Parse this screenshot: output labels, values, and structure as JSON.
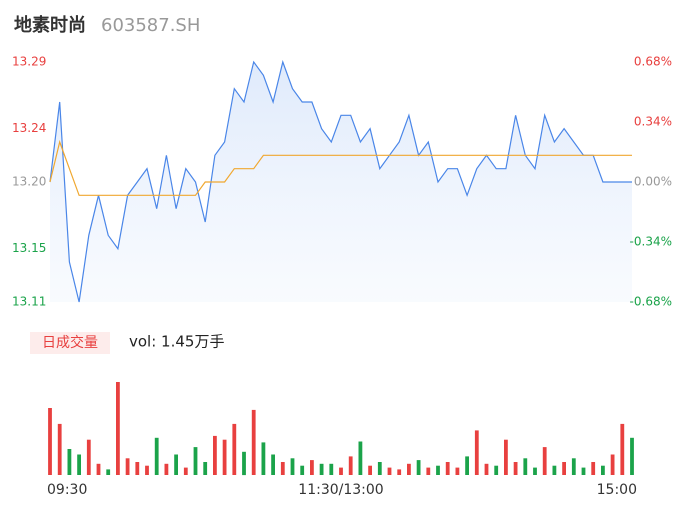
{
  "chart_data": {
    "type": "intraday",
    "title": "地素时尚",
    "subtitle": "603587.SH",
    "x": [
      0,
      4,
      8,
      12,
      16,
      20,
      24,
      28,
      32,
      36,
      40,
      44,
      48,
      52,
      56,
      60,
      64,
      68,
      72,
      76,
      80,
      84,
      88,
      92,
      96,
      100,
      104,
      108,
      112,
      116,
      120,
      124,
      128,
      132,
      136,
      140,
      144,
      148,
      152,
      156,
      160,
      164,
      168,
      172,
      176,
      180,
      184,
      188,
      192,
      196,
      200,
      204,
      208,
      212,
      216,
      220,
      224,
      228,
      232,
      236,
      240
    ],
    "xlim": [
      0,
      240
    ],
    "xticks": [
      {
        "value": 0,
        "label": "09:30"
      },
      {
        "value": 120,
        "label": "11:30/13:00"
      },
      {
        "value": 240,
        "label": "15:00"
      }
    ],
    "ylim": [
      13.11,
      13.29
    ],
    "yticks": [
      13.29,
      13.24,
      {
        "value": 13.2,
        "label": "13.20"
      },
      13.15,
      13.11
    ],
    "y2lim": [
      -0.68,
      0.68
    ],
    "y2ticks": [
      {
        "value": 0.68,
        "label": "0.68%"
      },
      {
        "value": 0.34,
        "label": "0.34%"
      },
      {
        "value": 0,
        "label": "0.00%"
      },
      {
        "value": -0.34,
        "label": "-0.34%"
      },
      {
        "value": -0.68,
        "label": "-0.68%"
      }
    ],
    "up_color": "#e8403f",
    "down_color": "#1ba34a",
    "flat_color": "#999999",
    "series": [
      {
        "color": "#4a86e8",
        "values": [
          13.2,
          13.26,
          13.14,
          13.11,
          13.16,
          13.19,
          13.16,
          13.15,
          13.19,
          13.2,
          13.21,
          13.18,
          13.22,
          13.18,
          13.21,
          13.2,
          13.17,
          13.22,
          13.23,
          13.27,
          13.26,
          13.29,
          13.28,
          13.26,
          13.29,
          13.27,
          13.26,
          13.26,
          13.24,
          13.23,
          13.25,
          13.25,
          13.23,
          13.24,
          13.21,
          13.22,
          13.23,
          13.25,
          13.22,
          13.23,
          13.2,
          13.21,
          13.21,
          13.19,
          13.21,
          13.22,
          13.21,
          13.21,
          13.25,
          13.22,
          13.21,
          13.25,
          13.23,
          13.24,
          13.23,
          13.22,
          13.22,
          13.2,
          13.2,
          13.2,
          13.2
        ]
      },
      {
        "color": "#f0a830",
        "values": [
          13.2,
          13.23,
          13.21,
          13.19,
          13.19,
          13.19,
          13.19,
          13.19,
          13.19,
          13.19,
          13.19,
          13.19,
          13.19,
          13.19,
          13.19,
          13.19,
          13.2,
          13.2,
          13.2,
          13.21,
          13.21,
          13.21,
          13.22,
          13.22,
          13.22,
          13.22,
          13.22,
          13.22,
          13.22,
          13.22,
          13.22,
          13.22,
          13.22,
          13.22,
          13.22,
          13.22,
          13.22,
          13.22,
          13.22,
          13.22,
          13.22,
          13.22,
          13.22,
          13.22,
          13.22,
          13.22,
          13.22,
          13.22,
          13.22,
          13.22,
          13.22,
          13.22,
          13.22,
          13.22,
          13.22,
          13.22,
          13.22,
          13.22,
          13.22,
          13.22,
          13.22
        ]
      }
    ],
    "volume_title": "日成交量",
    "volume_text": "vol: 1.45万手",
    "volume": {
      "ylim": [
        0,
        100
      ],
      "values": [
        72,
        55,
        28,
        22,
        38,
        12,
        6,
        100,
        18,
        14,
        10,
        40,
        12,
        22,
        8,
        30,
        14,
        42,
        38,
        55,
        25,
        70,
        35,
        22,
        14,
        18,
        10,
        16,
        12,
        12,
        8,
        20,
        36,
        10,
        14,
        8,
        6,
        12,
        16,
        8,
        10,
        14,
        8,
        20,
        48,
        12,
        10,
        38,
        14,
        18,
        8,
        30,
        10,
        14,
        18,
        8,
        14,
        10,
        22,
        55,
        40
      ],
      "colors": [
        "#e8403f",
        "#e8403f",
        "#1ba34a",
        "#1ba34a",
        "#e8403f",
        "#e8403f",
        "#1ba34a",
        "#e8403f",
        "#e8403f",
        "#e8403f",
        "#e8403f",
        "#1ba34a",
        "#e8403f",
        "#1ba34a",
        "#e8403f",
        "#1ba34a",
        "#1ba34a",
        "#e8403f",
        "#e8403f",
        "#e8403f",
        "#1ba34a",
        "#e8403f",
        "#1ba34a",
        "#1ba34a",
        "#e8403f",
        "#1ba34a",
        "#1ba34a",
        "#e8403f",
        "#1ba34a",
        "#1ba34a",
        "#e8403f",
        "#e8403f",
        "#1ba34a",
        "#e8403f",
        "#1ba34a",
        "#e8403f",
        "#e8403f",
        "#e8403f",
        "#1ba34a",
        "#e8403f",
        "#1ba34a",
        "#e8403f",
        "#e8403f",
        "#1ba34a",
        "#e8403f",
        "#e8403f",
        "#1ba34a",
        "#e8403f",
        "#e8403f",
        "#1ba34a",
        "#1ba34a",
        "#e8403f",
        "#1ba34a",
        "#e8403f",
        "#1ba34a",
        "#1ba34a",
        "#e8403f",
        "#1ba34a",
        "#e8403f",
        "#e8403f",
        "#1ba34a"
      ]
    }
  }
}
